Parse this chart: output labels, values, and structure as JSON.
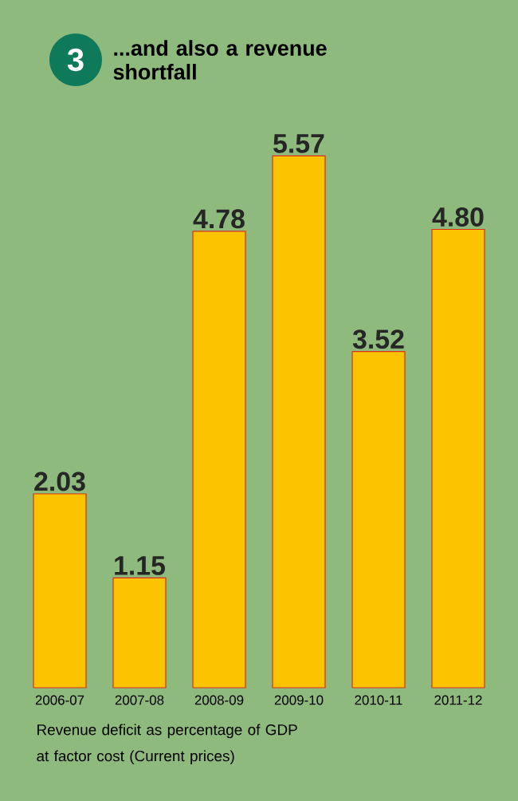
{
  "chart_data": {
    "type": "bar",
    "title": "...and also a revenue shortfall",
    "categories": [
      "2006-07",
      "2007-08",
      "2008-09",
      "2009-10",
      "2010-11",
      "2011-12"
    ],
    "values": [
      2.03,
      1.15,
      4.78,
      5.57,
      3.52,
      4.8
    ],
    "value_labels": [
      "2.03",
      "1.15",
      "4.78",
      "5.57",
      "3.52",
      "4.80"
    ],
    "color": "#fcc400",
    "annotations": [
      "3",
      "Revenue deficit as percentage of GDP at factor cost (Current prices)"
    ]
  }
}
